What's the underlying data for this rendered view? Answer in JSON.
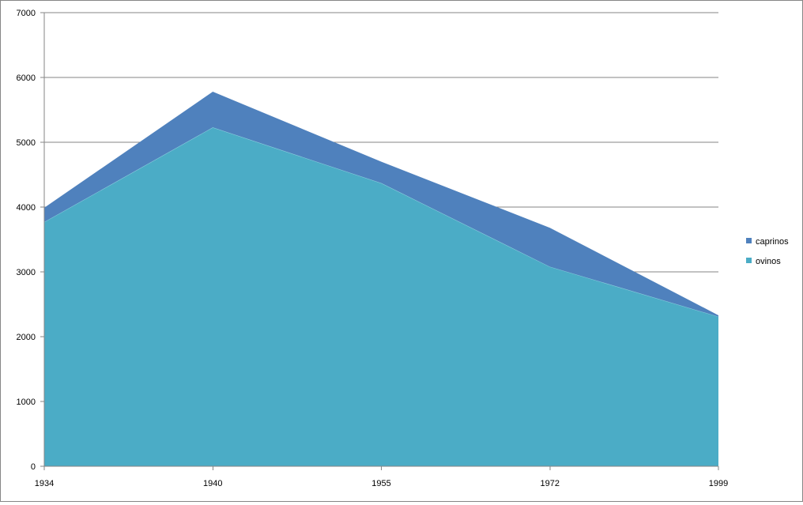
{
  "chart_data": {
    "type": "area",
    "stacked": true,
    "categories": [
      "1934",
      "1940",
      "1955",
      "1972",
      "1999"
    ],
    "series": [
      {
        "name": "ovinos",
        "values": [
          3770,
          5230,
          4370,
          3080,
          2310
        ],
        "color": "#4BACC6"
      },
      {
        "name": "caprinos",
        "values": [
          220,
          550,
          330,
          600,
          20
        ],
        "color": "#4F81BD"
      }
    ],
    "ylim": [
      0,
      7000
    ],
    "yticks": [
      0,
      1000,
      2000,
      3000,
      4000,
      5000,
      6000,
      7000
    ],
    "grid": true,
    "legend": "right",
    "axis_color": "#868686",
    "grid_color": "#868686"
  }
}
